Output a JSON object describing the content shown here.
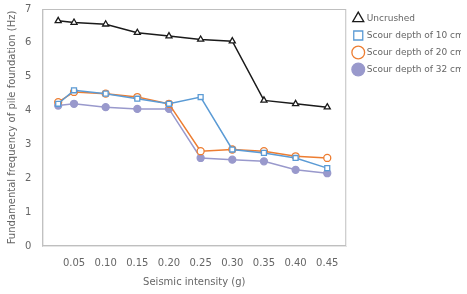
{
  "chart_data": {
    "type": "line",
    "x": [
      0.025,
      0.05,
      0.1,
      0.15,
      0.2,
      0.25,
      0.3,
      0.35,
      0.4,
      0.45
    ],
    "series": [
      {
        "name": "Uncrushed",
        "color": "#1a1a1a",
        "marker": "triangle",
        "line_style": "solid",
        "values": [
          6.65,
          6.6,
          6.55,
          6.3,
          6.2,
          6.1,
          6.05,
          4.3,
          4.2,
          4.1
        ]
      },
      {
        "name": "Scour depth of 10 cm",
        "color": "#5b9bd5",
        "marker": "square",
        "line_style": "solid",
        "values": [
          4.2,
          4.6,
          4.5,
          4.35,
          4.2,
          4.4,
          2.85,
          2.75,
          2.6,
          2.3
        ]
      },
      {
        "name": "Scour depth of 20 cm",
        "color": "#ed7d31",
        "marker": "circle",
        "line_style": "solid",
        "values": [
          4.25,
          4.55,
          4.5,
          4.4,
          4.2,
          2.8,
          2.85,
          2.8,
          2.65,
          2.6
        ]
      },
      {
        "name": "Scour depth of 32 cm",
        "color": "#9999cc",
        "marker": "dot",
        "line_style": "solid",
        "values": [
          4.15,
          4.2,
          4.1,
          4.05,
          4.05,
          2.6,
          2.55,
          2.5,
          2.25,
          2.15
        ]
      }
    ],
    "xlabel": "Seismic intensity (g)",
    "ylabel": "Fundamental frequency of pile foundation (Hz)",
    "xlim": [
      0.0,
      0.48
    ],
    "ylim": [
      0,
      7
    ],
    "xticks": [
      0.05,
      {
        "value": 0.1,
        "label": "0.10"
      },
      0.15,
      {
        "value": 0.2,
        "label": "0.20"
      },
      0.25,
      {
        "value": 0.3,
        "label": "0.30"
      },
      0.35,
      {
        "value": 0.4,
        "label": "0.40"
      },
      0.45
    ],
    "yticks": [
      0,
      1,
      2,
      3,
      4,
      5,
      6,
      7
    ],
    "grid": false,
    "legend": "upper right"
  }
}
